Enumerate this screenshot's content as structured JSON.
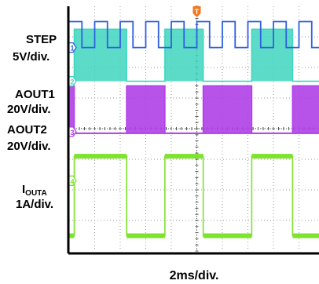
{
  "chart_data": {
    "type": "line",
    "instrument": "oscilloscope",
    "xlabel": "2ms/div.",
    "x_divisions": 10,
    "y_divisions": 8,
    "trigger_marker": "T",
    "channels": [
      {
        "id": "1",
        "name": "STEP",
        "scale": "5V/div.",
        "color": "#2f5fe0",
        "marker": "1",
        "waveform": "fast square wave",
        "high_div": 0.5,
        "low_div": 1.35,
        "ground_div": 1.35
      },
      {
        "id": "2",
        "name": "AOUT1",
        "scale": "20V/div.",
        "color": "#3fd6be",
        "marker": "2",
        "waveform": "gated square wave, high during STEP bursts",
        "high_div": 0.75,
        "low_div": 2.45,
        "ground_div": 2.45
      },
      {
        "id": "3",
        "name": "AOUT2",
        "scale": "20V/div.",
        "color": "#b040e8",
        "marker": "3",
        "waveform": "gated square wave, complementary to AOUT1",
        "high_div": 2.6,
        "low_div": 4.15,
        "ground_div": 4.1
      },
      {
        "id": "4",
        "name": "IOUTA",
        "name_main": "I",
        "name_sub": "OUTA",
        "scale": "1A/div.",
        "color": "#7de32c",
        "marker": "4",
        "waveform": "current square wave, high during AOUT1 high",
        "high_div": 4.9,
        "low_div": 7.5,
        "ground_div": 5.7
      }
    ],
    "cycles": [
      {
        "high_start_div": 0.2,
        "high_end_div": 2.25
      },
      {
        "high_start_div": 3.75,
        "high_end_div": 5.25
      },
      {
        "high_start_div": 7.15,
        "high_end_div": 8.75
      }
    ],
    "step_half_period_div": 0.5,
    "grid": true
  }
}
